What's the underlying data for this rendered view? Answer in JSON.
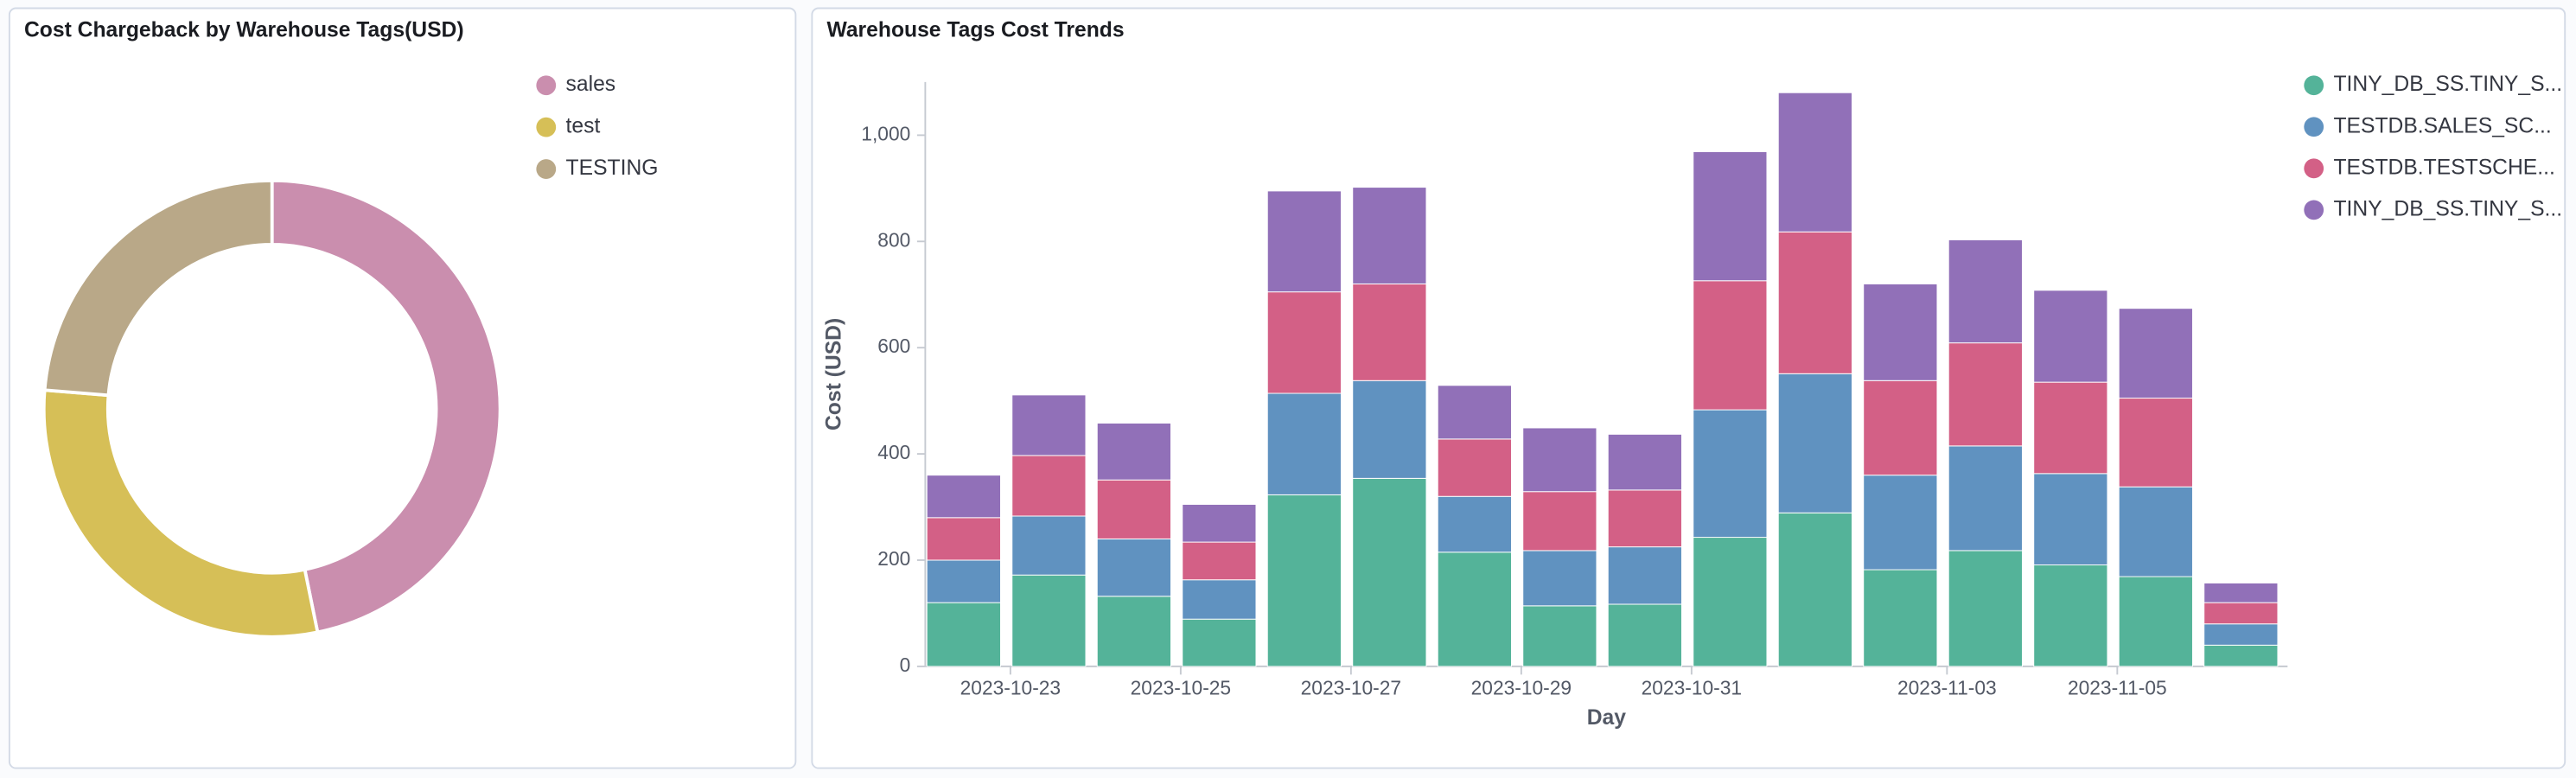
{
  "chart_data": [
    {
      "type": "pie",
      "title": "Cost Chargeback by Warehouse Tags(USD)",
      "categories": [
        "sales",
        "test",
        "TESTING"
      ],
      "values": [
        46.8,
        29.5,
        23.7
      ],
      "colors": [
        "#CA8EAE",
        "#D6BF57",
        "#B9A888"
      ],
      "legend": "top-right"
    },
    {
      "type": "stacked-bar",
      "title": "Warehouse Tags Cost Trends",
      "x_label": "Day",
      "y_label": "Cost (USD)",
      "x": [
        "2023-10-22",
        "2023-10-23",
        "2023-10-24",
        "2023-10-25",
        "2023-10-26",
        "2023-10-27",
        "2023-10-28",
        "2023-10-29",
        "2023-10-30",
        "2023-10-31",
        "2023-11-01",
        "2023-11-02",
        "2023-11-03",
        "2023-11-04",
        "2023-11-05",
        "2023-11-06"
      ],
      "xlim": [
        "2023-10-22",
        "2023-11-07"
      ],
      "xticks": [
        "2023-10-23",
        "2023-10-25",
        "2023-10-27",
        "2023-10-29",
        "2023-10-31",
        "2023-11-03",
        "2023-11-05"
      ],
      "ylim": [
        0,
        1100
      ],
      "yticks": [
        0,
        200,
        400,
        600,
        800,
        {
          "value": 1000,
          "label": "1,000"
        }
      ],
      "grid": false,
      "legend": "top-right",
      "series": [
        {
          "name": "TINY_DB_SS.TINY_S...",
          "color": "#54B399",
          "values": [
            120,
            172,
            132,
            89,
            323,
            354,
            215,
            114,
            117,
            243,
            289,
            182,
            218,
            191,
            169,
            40
          ]
        },
        {
          "name": "TESTDB.SALES_SC...",
          "color": "#6092C0",
          "values": [
            80,
            111,
            108,
            74,
            191,
            184,
            105,
            104,
            108,
            240,
            262,
            178,
            197,
            172,
            169,
            40
          ]
        },
        {
          "name": "TESTDB.TESTSCHE...",
          "color": "#D36086",
          "values": [
            80,
            114,
            111,
            71,
            191,
            182,
            108,
            111,
            107,
            243,
            267,
            178,
            194,
            172,
            167,
            40
          ]
        },
        {
          "name": "TINY_DB_SS.TINY_S...",
          "color": "#9170B8",
          "values": [
            80,
            114,
            107,
            71,
            190,
            182,
            101,
            120,
            105,
            243,
            262,
            182,
            194,
            173,
            169,
            37
          ]
        }
      ]
    }
  ]
}
